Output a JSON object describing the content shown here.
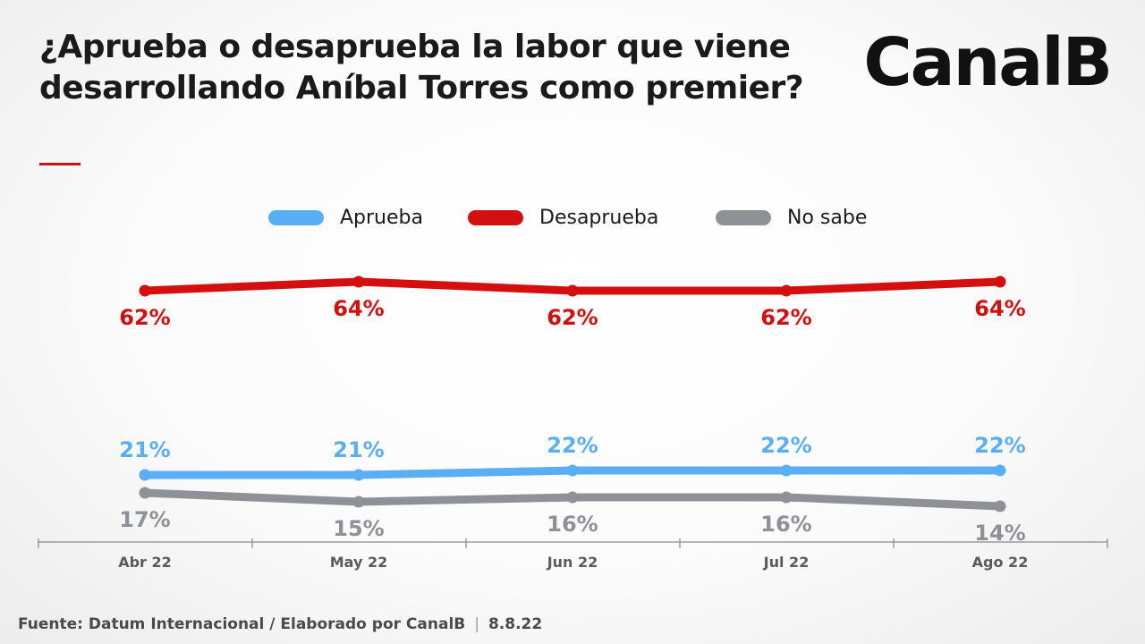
{
  "brand": "CanalB",
  "footer": {
    "source": "Fuente: Datum Internacional / Elaborado por CanalB",
    "separator": "|",
    "date": "8.8.22"
  },
  "colors": {
    "aprueba": "#5aaef5",
    "desaprueba": "#d40f10",
    "no_sabe": "#8e9296",
    "axis": "#8a8a8a"
  },
  "chart_data": {
    "type": "line",
    "title": "¿Aprueba o desaprueba la labor que viene desarrollando Aníbal Torres como premier?",
    "categories": [
      "Abr 22",
      "May 22",
      "Jun 22",
      "Jul 22",
      "Ago 22"
    ],
    "series": [
      {
        "name": "Aprueba",
        "values": [
          21,
          21,
          22,
          22,
          22
        ],
        "labels": [
          "21%",
          "21%",
          "22%",
          "22%",
          "22%"
        ],
        "color": "#5aaef5",
        "label_position": "above"
      },
      {
        "name": "Desaprueba",
        "values": [
          62,
          64,
          62,
          62,
          64
        ],
        "labels": [
          "62%",
          "64%",
          "62%",
          "62%",
          "64%"
        ],
        "color": "#d40f10",
        "label_position": "below"
      },
      {
        "name": "No sabe",
        "values": [
          17,
          15,
          16,
          16,
          14
        ],
        "labels": [
          "17%",
          "15%",
          "16%",
          "16%",
          "14%"
        ],
        "color": "#8e9296",
        "label_position": "below"
      }
    ],
    "legend": "top-center",
    "grid": false,
    "y_axis_visible": false
  }
}
